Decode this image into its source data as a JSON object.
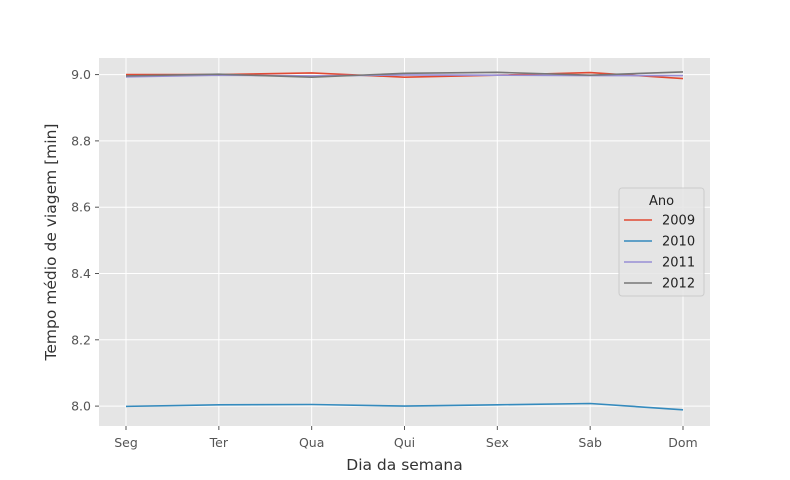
{
  "chart_data": {
    "type": "line",
    "title": "",
    "xlabel": "Dia da semana",
    "ylabel": "Tempo médio de viagem [min]",
    "categories": [
      "Seg",
      "Ter",
      "Qua",
      "Qui",
      "Sex",
      "Sab",
      "Dom"
    ],
    "ylim": [
      7.94,
      9.05
    ],
    "yticks": [
      8.0,
      8.2,
      8.4,
      8.6,
      8.8,
      9.0
    ],
    "ytick_labels": [
      "8.0",
      "8.2",
      "8.4",
      "8.6",
      "8.8",
      "9.0"
    ],
    "grid": true,
    "legend": {
      "title": "Ano",
      "placement": "center-right"
    },
    "series": [
      {
        "name": "2009",
        "color": "#E24A33",
        "values": [
          9.0,
          9.0,
          9.005,
          8.992,
          8.998,
          9.006,
          8.988
        ]
      },
      {
        "name": "2010",
        "color": "#348ABD",
        "values": [
          7.999,
          8.004,
          8.005,
          8.0,
          8.004,
          8.008,
          7.989
        ]
      },
      {
        "name": "2011",
        "color": "#988ED5",
        "values": [
          8.993,
          8.998,
          8.996,
          8.999,
          8.998,
          8.997,
          8.997
        ]
      },
      {
        "name": "2012",
        "color": "#777777",
        "values": [
          8.996,
          9.001,
          8.992,
          9.004,
          9.007,
          8.998,
          9.008
        ]
      }
    ]
  }
}
